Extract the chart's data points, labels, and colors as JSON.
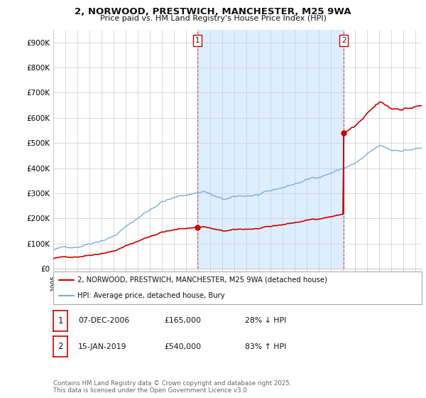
{
  "title_line1": "2, NORWOOD, PRESTWICH, MANCHESTER, M25 9WA",
  "title_line2": "Price paid vs. HM Land Registry's House Price Index (HPI)",
  "ylabel_ticks": [
    "£0",
    "£100K",
    "£200K",
    "£300K",
    "£400K",
    "£500K",
    "£600K",
    "£700K",
    "£800K",
    "£900K"
  ],
  "ylim": [
    0,
    950000
  ],
  "xlim_start": 1995.0,
  "xlim_end": 2025.5,
  "hpi_color": "#7aaddc",
  "price_color": "#cc0000",
  "sale1_x": 2006.93,
  "sale1_y": 165000,
  "sale2_x": 2019.04,
  "sale2_y": 540000,
  "vline1_x": 2006.93,
  "vline2_x": 2019.04,
  "shade_color": "#ddeeff",
  "legend_label1": "2, NORWOOD, PRESTWICH, MANCHESTER, M25 9WA (detached house)",
  "legend_label2": "HPI: Average price, detached house, Bury",
  "table_entries": [
    {
      "num": "1",
      "date": "07-DEC-2006",
      "price": "£165,000",
      "pct": "28% ↓ HPI"
    },
    {
      "num": "2",
      "date": "15-JAN-2019",
      "price": "£540,000",
      "pct": "83% ↑ HPI"
    }
  ],
  "footnote": "Contains HM Land Registry data © Crown copyright and database right 2025.\nThis data is licensed under the Open Government Licence v3.0.",
  "background_color": "#ffffff",
  "grid_color": "#cccccc"
}
